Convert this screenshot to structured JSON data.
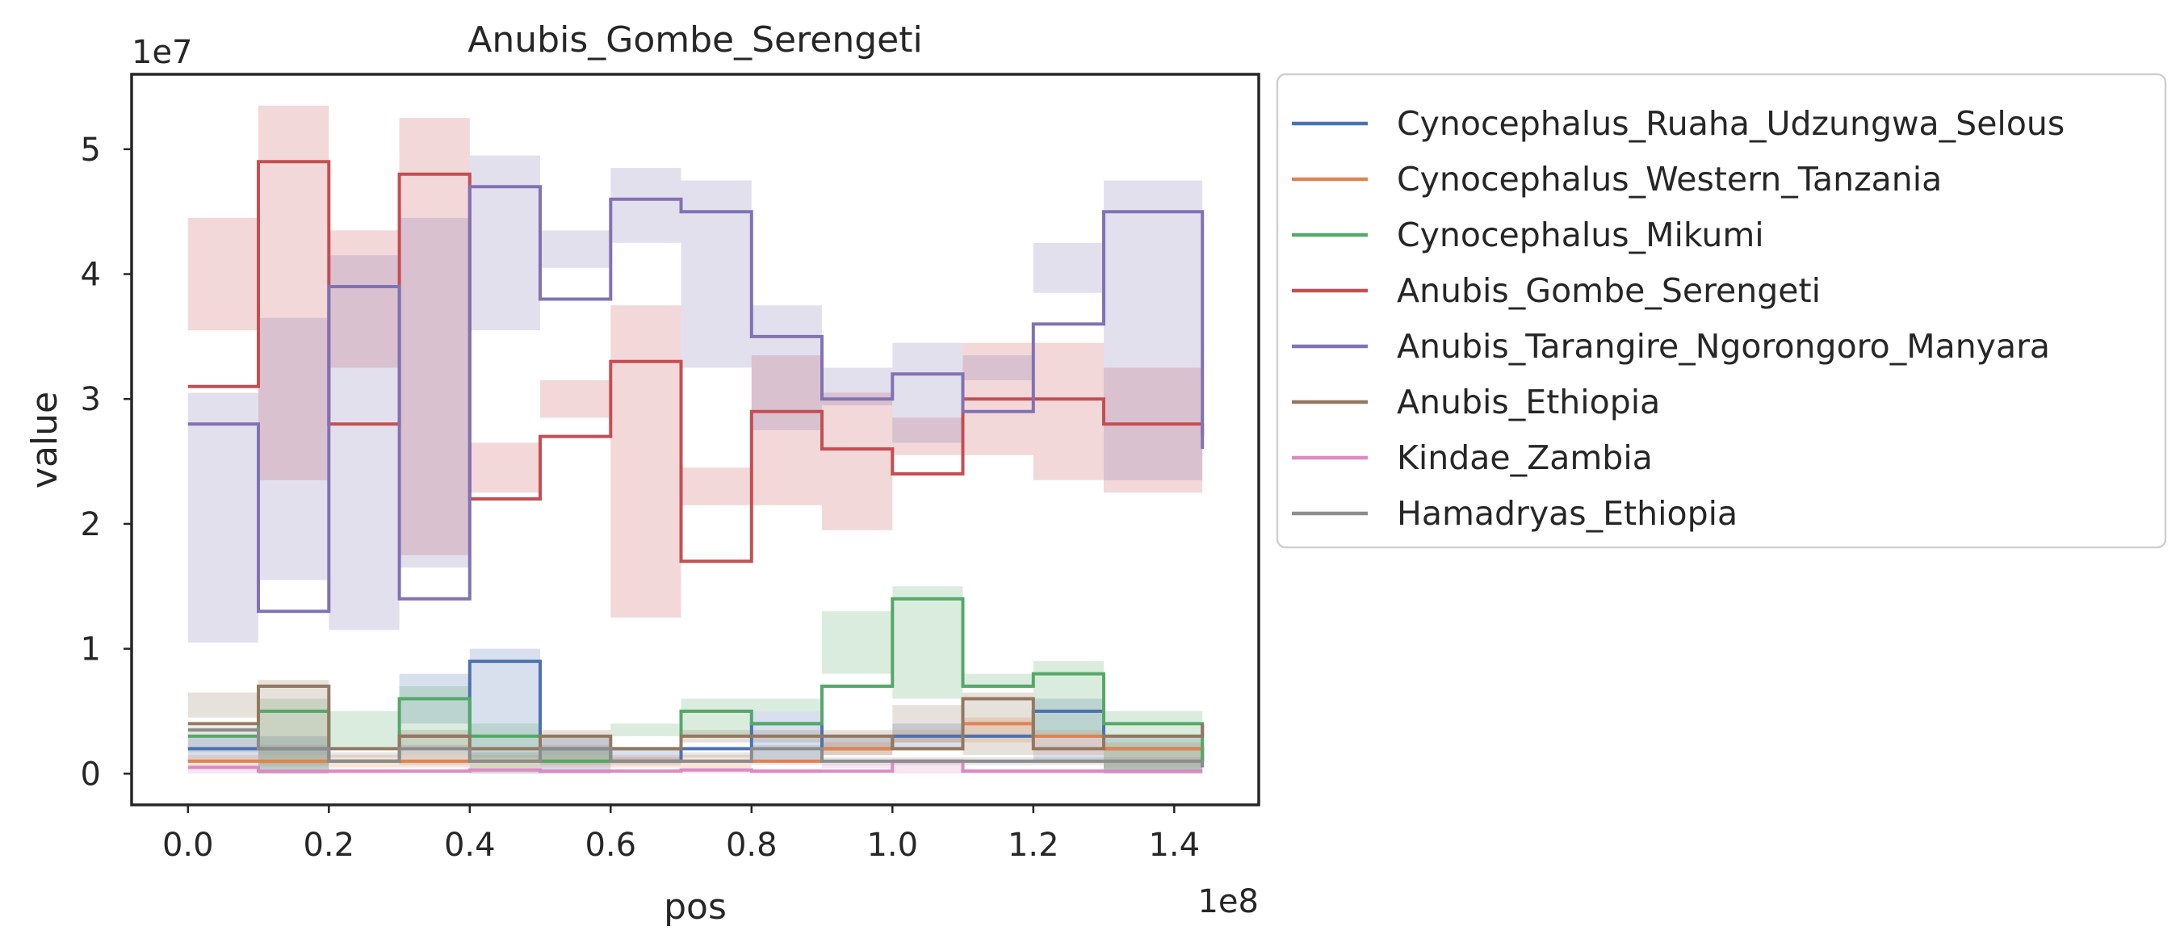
{
  "chart_data": {
    "type": "line",
    "title": "Anubis_Gombe_Serengeti",
    "xlabel": "pos",
    "ylabel": "value",
    "x_offset_label": "1e8",
    "y_offset_label": "1e7",
    "xlim": [
      -0.08,
      1.52
    ],
    "ylim": [
      -0.25,
      5.6
    ],
    "x_ticks": [
      0.0,
      0.2,
      0.4,
      0.6,
      0.8,
      1.0,
      1.2,
      1.4
    ],
    "x_tick_labels": [
      "0.0",
      "0.2",
      "0.4",
      "0.6",
      "0.8",
      "1.0",
      "1.2",
      "1.4"
    ],
    "y_ticks": [
      0,
      1,
      2,
      3,
      4,
      5
    ],
    "y_tick_labels": [
      "0",
      "1",
      "2",
      "3",
      "4",
      "5"
    ],
    "grid": false,
    "legend_position": "outside-right-top",
    "x": [
      0.0,
      0.1,
      0.2,
      0.3,
      0.4,
      0.5,
      0.6,
      0.7,
      0.8,
      0.9,
      1.0,
      1.1,
      1.2,
      1.3,
      1.44
    ],
    "series": [
      {
        "name": "Cynocephalus_Ruaha_Udzungwa_Selous",
        "color": "#4c72b0",
        "values": [
          0.2,
          0.2,
          0.1,
          0.3,
          0.9,
          0.2,
          0.1,
          0.2,
          0.4,
          0.2,
          0.3,
          0.3,
          0.5,
          0.2,
          0.1
        ],
        "band": 0.1
      },
      {
        "name": "Cynocephalus_Western_Tanzania",
        "color": "#dd8452",
        "values": [
          0.1,
          0.1,
          0.1,
          0.1,
          0.1,
          0.1,
          0.1,
          0.1,
          0.1,
          0.2,
          0.2,
          0.4,
          0.3,
          0.2,
          0.1
        ],
        "band": 0.05
      },
      {
        "name": "Cynocephalus_Mikumi",
        "color": "#55a868",
        "values": [
          0.3,
          0.5,
          0.1,
          0.6,
          0.3,
          0.1,
          0.2,
          0.5,
          0.4,
          0.7,
          1.4,
          0.7,
          0.8,
          0.4,
          0.1
        ],
        "band": 0.1
      },
      {
        "name": "Anubis_Gombe_Serengeti",
        "color": "#c44e52",
        "values": [
          3.1,
          4.9,
          2.8,
          4.8,
          2.2,
          2.7,
          3.3,
          1.7,
          2.9,
          2.6,
          2.4,
          3.0,
          3.0,
          2.8,
          2.7
        ],
        "band": 0.45
      },
      {
        "name": "Anubis_Tarangire_Ngorongoro_Manyara",
        "color": "#8172b3",
        "values": [
          2.8,
          1.3,
          3.9,
          1.4,
          4.7,
          3.8,
          4.6,
          4.5,
          3.5,
          3.0,
          3.2,
          2.9,
          3.6,
          4.5,
          2.6
        ],
        "band": 0.25
      },
      {
        "name": "Anubis_Ethiopia",
        "color": "#937860",
        "values": [
          0.4,
          0.7,
          0.2,
          0.3,
          0.2,
          0.3,
          0.2,
          0.3,
          0.3,
          0.3,
          0.2,
          0.6,
          0.2,
          0.3,
          0.4
        ],
        "band": 0.05
      },
      {
        "name": "Kindae_Zambia",
        "color": "#da8bc3",
        "values": [
          0.05,
          0.02,
          0.02,
          0.02,
          0.03,
          0.02,
          0.02,
          0.03,
          0.02,
          0.02,
          0.1,
          0.02,
          0.02,
          0.02,
          0.02
        ],
        "band": 0.02
      },
      {
        "name": "Hamadryas_Ethiopia",
        "color": "#8c8c8c",
        "values": [
          0.35,
          0.2,
          0.1,
          0.2,
          0.1,
          0.2,
          0.1,
          0.1,
          0.2,
          0.1,
          0.1,
          0.1,
          0.1,
          0.1,
          0.05
        ],
        "band": 0.03
      }
    ]
  }
}
